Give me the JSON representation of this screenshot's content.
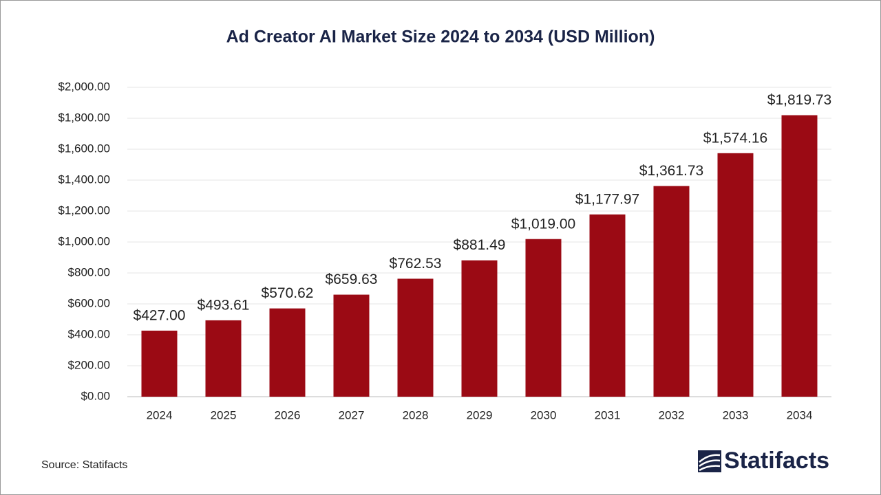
{
  "chart_data": {
    "type": "bar",
    "title": "Ad Creator AI Market Size 2024 to 2034 (USD Million)",
    "categories": [
      "2024",
      "2025",
      "2026",
      "2027",
      "2028",
      "2029",
      "2030",
      "2031",
      "2032",
      "2033",
      "2034"
    ],
    "values": [
      427.0,
      493.61,
      570.62,
      659.63,
      762.53,
      881.49,
      1019.0,
      1177.97,
      1361.73,
      1574.16,
      1819.73
    ],
    "value_labels": [
      "$427.00",
      "$493.61",
      "$570.62",
      "$659.63",
      "$762.53",
      "$881.49",
      "$1,019.00",
      "$1,177.97",
      "$1,361.73",
      "$1,574.16",
      "$1,819.73"
    ],
    "color": "#9b0a14",
    "ylim": [
      0,
      2000
    ],
    "yticks": [
      {
        "value": 0,
        "label": "$0.00"
      },
      {
        "value": 200,
        "label": "$200.00"
      },
      {
        "value": 400,
        "label": "$400.00"
      },
      {
        "value": 600,
        "label": "$600.00"
      },
      {
        "value": 800,
        "label": "$800.00"
      },
      {
        "value": 1000,
        "label": "$1,000.00"
      },
      {
        "value": 1200,
        "label": "$1,200.00"
      },
      {
        "value": 1400,
        "label": "$1,400.00"
      },
      {
        "value": 1600,
        "label": "$1,600.00"
      },
      {
        "value": 1800,
        "label": "$1,800.00"
      },
      {
        "value": 2000,
        "label": "$2,000.00"
      }
    ],
    "grid": true
  },
  "source": "Source: Statifacts",
  "logo": "Statifacts"
}
